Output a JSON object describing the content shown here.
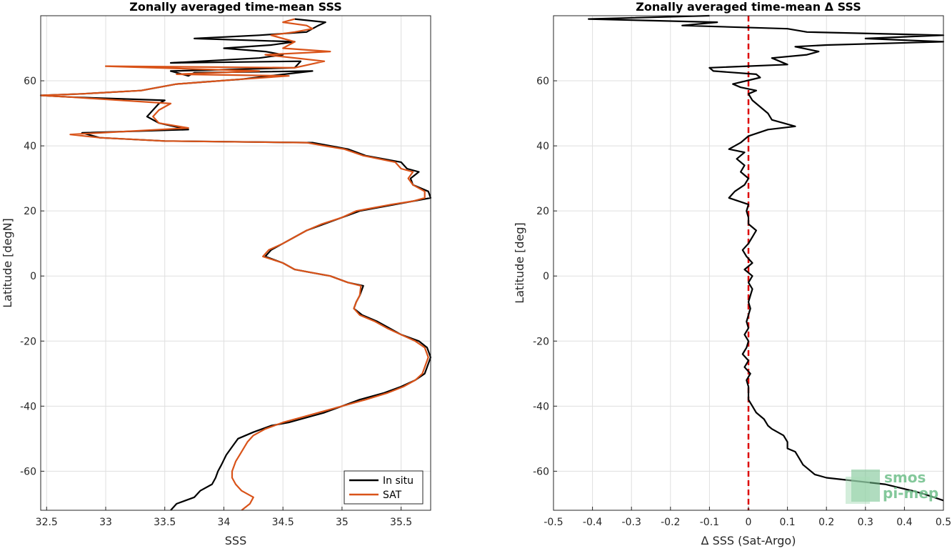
{
  "chart_data": [
    {
      "type": "line",
      "title": "Zonally averaged time-mean SSS",
      "xlabel": "SSS",
      "ylabel": "Latitude [degN]",
      "xlim": [
        32.45,
        35.75
      ],
      "ylim": [
        -72,
        80
      ],
      "xticks": [
        32.5,
        33,
        33.5,
        34,
        34.5,
        35,
        35.5
      ],
      "yticks": [
        -60,
        -40,
        -20,
        0,
        20,
        40,
        60
      ],
      "grid": true,
      "legend": "bottom-right",
      "colors": [
        "#000000",
        "#d95319"
      ],
      "series": [
        {
          "name": "In situ",
          "color": "#000000",
          "points": [
            [
              33.55,
              -72
            ],
            [
              33.6,
              -70
            ],
            [
              33.75,
              -68
            ],
            [
              33.8,
              -66
            ],
            [
              33.9,
              -64
            ],
            [
              33.93,
              -62
            ],
            [
              33.95,
              -60
            ],
            [
              33.98,
              -58
            ],
            [
              34.02,
              -55
            ],
            [
              34.08,
              -52
            ],
            [
              34.12,
              -50
            ],
            [
              34.25,
              -48
            ],
            [
              34.4,
              -46
            ],
            [
              34.55,
              -45
            ],
            [
              34.75,
              -43
            ],
            [
              34.85,
              -42
            ],
            [
              35.0,
              -40
            ],
            [
              35.15,
              -38
            ],
            [
              35.35,
              -36
            ],
            [
              35.5,
              -34
            ],
            [
              35.62,
              -32
            ],
            [
              35.7,
              -30
            ],
            [
              35.72,
              -28
            ],
            [
              35.75,
              -25
            ],
            [
              35.72,
              -22
            ],
            [
              35.65,
              -20
            ],
            [
              35.5,
              -18
            ],
            [
              35.4,
              -16
            ],
            [
              35.3,
              -14
            ],
            [
              35.17,
              -12
            ],
            [
              35.1,
              -10
            ],
            [
              35.12,
              -8
            ],
            [
              35.15,
              -6
            ],
            [
              35.18,
              -3
            ],
            [
              35.05,
              -2
            ],
            [
              34.9,
              0
            ],
            [
              34.75,
              1
            ],
            [
              34.6,
              2
            ],
            [
              34.5,
              4
            ],
            [
              34.35,
              6
            ],
            [
              34.4,
              8
            ],
            [
              34.5,
              10
            ],
            [
              34.6,
              12
            ],
            [
              34.7,
              14
            ],
            [
              34.85,
              16
            ],
            [
              35.0,
              18
            ],
            [
              35.15,
              20
            ],
            [
              35.45,
              22
            ],
            [
              35.6,
              23
            ],
            [
              35.75,
              24
            ],
            [
              35.73,
              26
            ],
            [
              35.6,
              28
            ],
            [
              35.58,
              30
            ],
            [
              35.65,
              32
            ],
            [
              35.55,
              33
            ],
            [
              35.5,
              35
            ],
            [
              35.2,
              37
            ],
            [
              35.05,
              39
            ],
            [
              34.9,
              40
            ],
            [
              34.75,
              41
            ],
            [
              33.5,
              41.5
            ],
            [
              32.95,
              42.5
            ],
            [
              32.8,
              44
            ],
            [
              33.7,
              45
            ],
            [
              33.45,
              47
            ],
            [
              33.35,
              49
            ],
            [
              33.4,
              51
            ],
            [
              33.45,
              53
            ],
            [
              33.5,
              54
            ],
            [
              32.7,
              55
            ],
            [
              32.45,
              55.5
            ],
            [
              32.8,
              56
            ],
            [
              33.3,
              57
            ],
            [
              33.6,
              59
            ],
            [
              34.15,
              60.5
            ],
            [
              34.75,
              63
            ],
            [
              33.75,
              62.5
            ],
            [
              33.7,
              61.5
            ],
            [
              33.55,
              63
            ],
            [
              34.6,
              64
            ],
            [
              34.65,
              66
            ],
            [
              33.55,
              65.5
            ],
            [
              34.3,
              67
            ],
            [
              34.5,
              68
            ],
            [
              34.35,
              69
            ],
            [
              34.0,
              70
            ],
            [
              34.4,
              71
            ],
            [
              34.6,
              72
            ],
            [
              33.75,
              73
            ],
            [
              34.3,
              74
            ],
            [
              34.7,
              75
            ],
            [
              34.75,
              76
            ],
            [
              34.8,
              77
            ],
            [
              34.86,
              78
            ],
            [
              34.6,
              79
            ]
          ]
        },
        {
          "name": "SAT",
          "color": "#d95319",
          "points": [
            [
              34.15,
              -72
            ],
            [
              34.22,
              -70
            ],
            [
              34.25,
              -68
            ],
            [
              34.15,
              -66
            ],
            [
              34.1,
              -64
            ],
            [
              34.07,
              -62
            ],
            [
              34.07,
              -60
            ],
            [
              34.1,
              -57
            ],
            [
              34.15,
              -54
            ],
            [
              34.2,
              -51
            ],
            [
              34.25,
              -49
            ],
            [
              34.35,
              -47
            ],
            [
              34.5,
              -45
            ],
            [
              34.65,
              -43.5
            ],
            [
              34.8,
              -42
            ],
            [
              35.0,
              -40
            ],
            [
              35.2,
              -38
            ],
            [
              35.38,
              -36
            ],
            [
              35.52,
              -34
            ],
            [
              35.62,
              -32
            ],
            [
              35.68,
              -30
            ],
            [
              35.7,
              -28
            ],
            [
              35.73,
              -25
            ],
            [
              35.7,
              -22
            ],
            [
              35.62,
              -20
            ],
            [
              35.5,
              -18
            ],
            [
              35.38,
              -16
            ],
            [
              35.28,
              -14
            ],
            [
              35.15,
              -12
            ],
            [
              35.1,
              -10
            ],
            [
              35.12,
              -8
            ],
            [
              35.15,
              -6
            ],
            [
              35.16,
              -3
            ],
            [
              35.05,
              -2
            ],
            [
              34.9,
              0
            ],
            [
              34.75,
              1
            ],
            [
              34.6,
              2
            ],
            [
              34.5,
              4
            ],
            [
              34.33,
              6
            ],
            [
              34.38,
              8
            ],
            [
              34.5,
              10
            ],
            [
              34.6,
              12
            ],
            [
              34.7,
              14
            ],
            [
              34.83,
              16
            ],
            [
              35.0,
              18
            ],
            [
              35.12,
              20
            ],
            [
              35.42,
              22
            ],
            [
              35.6,
              23
            ],
            [
              35.7,
              24
            ],
            [
              35.7,
              26
            ],
            [
              35.6,
              28
            ],
            [
              35.56,
              30
            ],
            [
              35.6,
              32
            ],
            [
              35.5,
              33
            ],
            [
              35.45,
              35
            ],
            [
              35.18,
              37
            ],
            [
              35.02,
              39
            ],
            [
              34.85,
              40
            ],
            [
              34.7,
              41
            ],
            [
              33.5,
              41.5
            ],
            [
              32.95,
              42.5
            ],
            [
              32.7,
              43.5
            ],
            [
              33.7,
              45.5
            ],
            [
              33.45,
              47
            ],
            [
              33.4,
              49
            ],
            [
              33.45,
              51
            ],
            [
              33.55,
              53
            ],
            [
              32.7,
              55
            ],
            [
              32.45,
              55.5
            ],
            [
              32.8,
              56
            ],
            [
              33.3,
              57
            ],
            [
              33.6,
              59
            ],
            [
              34.15,
              60.5
            ],
            [
              34.55,
              61.5
            ],
            [
              33.6,
              62
            ],
            [
              34.3,
              63
            ],
            [
              33.0,
              64.5
            ],
            [
              34.6,
              64
            ],
            [
              34.85,
              66
            ],
            [
              34.35,
              68
            ],
            [
              34.9,
              69
            ],
            [
              34.5,
              70
            ],
            [
              34.6,
              72
            ],
            [
              34.4,
              74
            ],
            [
              34.6,
              75
            ],
            [
              34.75,
              76
            ],
            [
              34.7,
              77
            ],
            [
              34.5,
              78
            ],
            [
              34.6,
              79
            ]
          ]
        }
      ]
    },
    {
      "type": "line",
      "title": "Zonally averaged time-mean Δ SSS",
      "xlabel": "Δ SSS (Sat-Argo)",
      "ylabel": "Latitude [deg]",
      "xlim": [
        -0.5,
        0.5
      ],
      "ylim": [
        -72,
        80
      ],
      "xticks": [
        -0.5,
        -0.4,
        -0.3,
        -0.2,
        -0.1,
        0,
        0.1,
        0.2,
        0.3,
        0.4,
        0.5
      ],
      "yticks": [
        -60,
        -40,
        -20,
        0,
        20,
        40,
        60
      ],
      "grid": true,
      "reference_line": {
        "x": 0,
        "color": "#dd0000",
        "style": "dashed"
      },
      "series": [
        {
          "color": "#000000",
          "points": [
            [
              0.5,
              -69
            ],
            [
              0.45,
              -67
            ],
            [
              0.42,
              -66
            ],
            [
              0.35,
              -64
            ],
            [
              0.2,
              -62
            ],
            [
              0.17,
              -61
            ],
            [
              0.15,
              -59
            ],
            [
              0.14,
              -58
            ],
            [
              0.13,
              -56
            ],
            [
              0.12,
              -54
            ],
            [
              0.1,
              -53
            ],
            [
              0.1,
              -51
            ],
            [
              0.09,
              -49
            ],
            [
              0.06,
              -47
            ],
            [
              0.05,
              -46
            ],
            [
              0.04,
              -44
            ],
            [
              0.02,
              -42
            ],
            [
              0.01,
              -40
            ],
            [
              0.0,
              -38
            ],
            [
              0.0,
              -36
            ],
            [
              0.0,
              -34
            ],
            [
              -0.005,
              -32
            ],
            [
              0.005,
              -30
            ],
            [
              -0.01,
              -28
            ],
            [
              0.0,
              -26
            ],
            [
              -0.015,
              -24
            ],
            [
              -0.005,
              -22
            ],
            [
              0.0,
              -20
            ],
            [
              -0.01,
              -18
            ],
            [
              0.0,
              -16
            ],
            [
              -0.005,
              -14
            ],
            [
              0.0,
              -12
            ],
            [
              0.005,
              -10
            ],
            [
              0.0,
              -8
            ],
            [
              0.005,
              -6
            ],
            [
              0.01,
              -4
            ],
            [
              0.0,
              -2
            ],
            [
              0.01,
              0
            ],
            [
              -0.01,
              2
            ],
            [
              0.01,
              4
            ],
            [
              -0.005,
              6
            ],
            [
              -0.015,
              8
            ],
            [
              0.0,
              10
            ],
            [
              0.01,
              12
            ],
            [
              0.02,
              14
            ],
            [
              0.0,
              16
            ],
            [
              0.0,
              18
            ],
            [
              -0.005,
              20
            ],
            [
              0.0,
              22
            ],
            [
              -0.05,
              24
            ],
            [
              -0.035,
              26
            ],
            [
              -0.01,
              28
            ],
            [
              0.0,
              30
            ],
            [
              -0.02,
              32
            ],
            [
              -0.01,
              34
            ],
            [
              -0.03,
              36
            ],
            [
              -0.01,
              38
            ],
            [
              -0.05,
              39
            ],
            [
              -0.02,
              41
            ],
            [
              0.0,
              43
            ],
            [
              0.05,
              45
            ],
            [
              0.12,
              46
            ],
            [
              0.06,
              48
            ],
            [
              0.05,
              50
            ],
            [
              0.03,
              52
            ],
            [
              0.01,
              54
            ],
            [
              0.0,
              56
            ],
            [
              0.02,
              57
            ],
            [
              -0.02,
              58
            ],
            [
              -0.04,
              59
            ],
            [
              0.03,
              61
            ],
            [
              0.02,
              62
            ],
            [
              -0.09,
              63
            ],
            [
              -0.1,
              64
            ],
            [
              0.1,
              65
            ],
            [
              0.06,
              67
            ],
            [
              0.15,
              68
            ],
            [
              0.18,
              69
            ],
            [
              0.12,
              70.5
            ],
            [
              0.2,
              71
            ],
            [
              0.5,
              72
            ],
            [
              0.3,
              73
            ],
            [
              0.5,
              74
            ],
            [
              0.15,
              75
            ],
            [
              0.1,
              76
            ],
            [
              -0.17,
              77
            ],
            [
              -0.08,
              78
            ],
            [
              -0.41,
              79
            ],
            [
              -0.1,
              80
            ]
          ]
        }
      ]
    }
  ],
  "legend": {
    "items": [
      "In situ",
      "SAT"
    ]
  },
  "logo": {
    "line1": "smos",
    "line2": "pi-mep"
  }
}
